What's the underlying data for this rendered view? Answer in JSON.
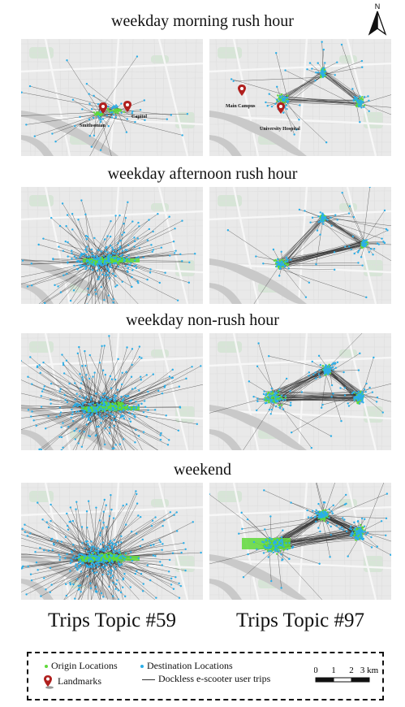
{
  "rows": [
    {
      "id": "morning",
      "title": "weekday morning rush hour"
    },
    {
      "id": "afternoon",
      "title": "weekday afternoon rush hour"
    },
    {
      "id": "nonrush",
      "title": "weekday non-rush hour"
    },
    {
      "id": "weekend",
      "title": "weekend"
    }
  ],
  "columns": [
    {
      "id": "t59",
      "title": "Trips Topic #59"
    },
    {
      "id": "t97",
      "title": "Trips Topic #97"
    }
  ],
  "landmarks": {
    "t59": [
      "Smithsonian",
      "Capitol"
    ],
    "t97": [
      "Main Campus",
      "University Hospital"
    ]
  },
  "north_label": "N",
  "legend": {
    "origin": "Origin Locations",
    "destination": "Destination Locations",
    "landmarks": "Landmarks",
    "trips": "Dockless e-scooter user trips",
    "scale_ticks": [
      "0",
      "1",
      "2",
      "3 km"
    ]
  },
  "colors": {
    "origin": "#5fd93a",
    "destination": "#2aaee8",
    "trip_line": "#333333",
    "landmark": "#b0201e",
    "map_bg": "#e9e9e9",
    "road": "#f7f7f7",
    "river": "#c9c9c9",
    "park": "#cfe3cf"
  }
}
